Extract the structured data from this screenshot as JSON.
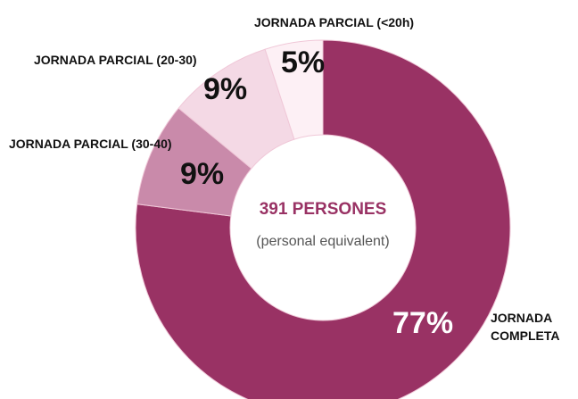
{
  "chart_data": {
    "type": "donut",
    "categories": [
      "JORNADA COMPLETA",
      "JORNADA PARCIAL (30-40)",
      "JORNADA PARCIAL (20-30)",
      "JORNADA PARCIAL (<20h)"
    ],
    "values": [
      77,
      9,
      9,
      5
    ],
    "value_labels": [
      "77%",
      "9%",
      "9%",
      "5%"
    ],
    "colors": [
      "#993264",
      "#c98aaa",
      "#f4d9e5",
      "#fdf0f5"
    ],
    "center_title": "391 PERSONES",
    "center_subtitle": "(personal equivalent)"
  }
}
